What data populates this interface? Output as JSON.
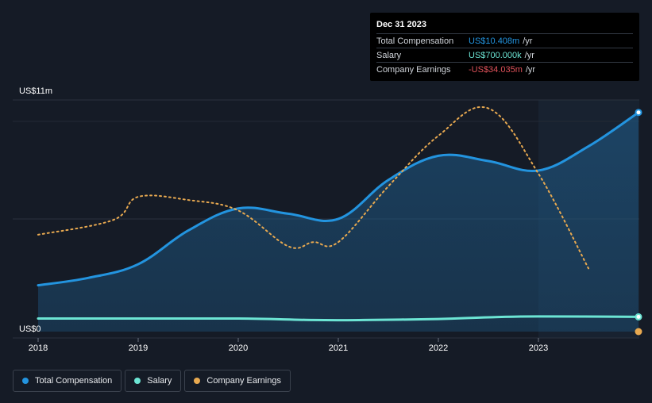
{
  "tooltip": {
    "date": "Dec 31 2023",
    "rows": [
      {
        "label": "Total Compensation",
        "value": "US$10.408m",
        "unit": "/yr",
        "color": "#2394df"
      },
      {
        "label": "Salary",
        "value": "US$700.000k",
        "unit": "/yr",
        "color": "#6ce5d4"
      },
      {
        "label": "Company Earnings",
        "value": "-US$34.035m",
        "unit": "/yr",
        "color": "#e0525a"
      }
    ]
  },
  "legend": [
    {
      "label": "Total Compensation",
      "color": "#2394df"
    },
    {
      "label": "Salary",
      "color": "#6ce5d4"
    },
    {
      "label": "Company Earnings",
      "color": "#e8a950"
    }
  ],
  "chart_data": {
    "type": "line",
    "ylabel_top": "US$11m",
    "ylabel_bottom": "US$0",
    "ylim": [
      0,
      11
    ],
    "xlim": [
      2018.0,
      2024.0
    ],
    "x_ticks": [
      "2018",
      "2019",
      "2020",
      "2021",
      "2022",
      "2023"
    ],
    "grid": true,
    "series": [
      {
        "name": "Total Compensation",
        "color": "#2394df",
        "points": [
          [
            2018.0,
            2.2
          ],
          [
            2018.5,
            2.55
          ],
          [
            2019.0,
            3.2
          ],
          [
            2019.5,
            4.8
          ],
          [
            2020.0,
            5.85
          ],
          [
            2020.5,
            5.6
          ],
          [
            2021.0,
            5.35
          ],
          [
            2021.5,
            7.2
          ],
          [
            2022.0,
            8.35
          ],
          [
            2022.5,
            8.1
          ],
          [
            2023.0,
            7.65
          ],
          [
            2023.5,
            8.8
          ],
          [
            2024.0,
            10.408
          ]
        ]
      },
      {
        "name": "Salary",
        "color": "#6ce5d4",
        "points": [
          [
            2018.0,
            0.62
          ],
          [
            2019.0,
            0.62
          ],
          [
            2020.0,
            0.62
          ],
          [
            2020.75,
            0.55
          ],
          [
            2021.25,
            0.55
          ],
          [
            2022.0,
            0.6
          ],
          [
            2022.5,
            0.68
          ],
          [
            2023.0,
            0.72
          ],
          [
            2024.0,
            0.7
          ]
        ]
      },
      {
        "name": "Company Earnings",
        "color": "#e8a950",
        "negative_color": "#e0525a",
        "points": [
          [
            2018.0,
            4.6
          ],
          [
            2018.75,
            5.3
          ],
          [
            2019.0,
            6.4
          ],
          [
            2019.5,
            6.25
          ],
          [
            2020.0,
            5.75
          ],
          [
            2020.5,
            4.05
          ],
          [
            2020.75,
            4.25
          ],
          [
            2021.0,
            4.25
          ],
          [
            2021.5,
            6.9
          ],
          [
            2022.0,
            9.3
          ],
          [
            2022.5,
            10.6
          ],
          [
            2023.0,
            7.5
          ],
          [
            2023.5,
            3.0
          ],
          [
            2024.0,
            -0.4
          ]
        ]
      }
    ],
    "highlight_region_start": 2023.0
  }
}
